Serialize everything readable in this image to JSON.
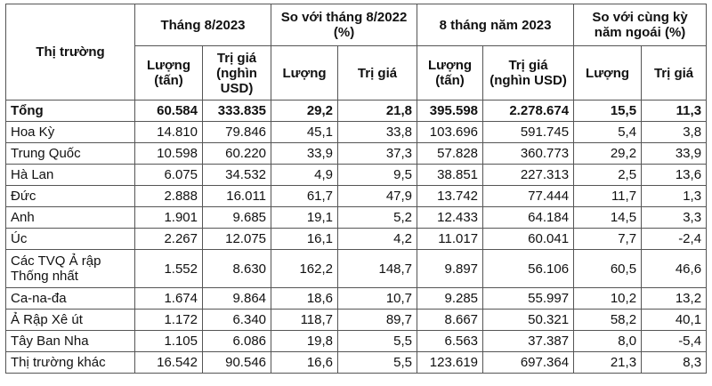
{
  "header": {
    "market": "Thị trường",
    "groups": [
      "Tháng 8/2023",
      "So với tháng 8/2022 (%)",
      "8 tháng năm 2023",
      "So với cùng kỳ năm ngoái (%)"
    ],
    "subs": [
      "Lượng (tấn)",
      "Trị giá (nghìn USD)",
      "Lượng",
      "Trị giá",
      "Lượng (tấn)",
      "Trị giá (nghìn USD)",
      "Lượng",
      "Trị giá"
    ]
  },
  "rows": [
    {
      "name": "Tổng",
      "v": [
        "60.584",
        "333.835",
        "29,2",
        "21,8",
        "395.598",
        "2.278.674",
        "15,5",
        "11,3"
      ]
    },
    {
      "name": "Hoa Kỳ",
      "v": [
        "14.810",
        "79.846",
        "45,1",
        "33,8",
        "103.696",
        "591.745",
        "5,4",
        "3,8"
      ]
    },
    {
      "name": "Trung Quốc",
      "v": [
        "10.598",
        "60.220",
        "33,9",
        "37,3",
        "57.828",
        "360.773",
        "29,2",
        "33,9"
      ]
    },
    {
      "name": "Hà Lan",
      "v": [
        "6.075",
        "34.532",
        "4,9",
        "9,5",
        "38.851",
        "227.313",
        "2,5",
        "13,6"
      ]
    },
    {
      "name": "Đức",
      "v": [
        "2.888",
        "16.011",
        "61,7",
        "47,9",
        "13.742",
        "77.444",
        "11,7",
        "1,3"
      ]
    },
    {
      "name": "Anh",
      "v": [
        "1.901",
        "9.685",
        "19,1",
        "5,2",
        "12.433",
        "64.184",
        "14,5",
        "3,3"
      ]
    },
    {
      "name": "Úc",
      "v": [
        "2.267",
        "12.075",
        "16,1",
        "4,2",
        "11.017",
        "60.041",
        "7,7",
        "-2,4"
      ]
    },
    {
      "name": "Các TVQ Ả rập Thống nhất",
      "v": [
        "1.552",
        "8.630",
        "162,2",
        "148,7",
        "9.897",
        "56.106",
        "60,5",
        "46,6"
      ]
    },
    {
      "name": "Ca-na-đa",
      "v": [
        "1.674",
        "9.864",
        "18,6",
        "10,7",
        "9.285",
        "55.997",
        "10,2",
        "13,2"
      ]
    },
    {
      "name": "Ả Rập Xê út",
      "v": [
        "1.172",
        "6.340",
        "118,7",
        "89,7",
        "8.667",
        "50.321",
        "58,2",
        "40,1"
      ]
    },
    {
      "name": "Tây Ban Nha",
      "v": [
        "1.105",
        "6.086",
        "19,8",
        "5,5",
        "6.563",
        "37.387",
        "8,0",
        "-5,4"
      ]
    },
    {
      "name": "Thị trường khác",
      "v": [
        "16.542",
        "90.546",
        "16,6",
        "5,5",
        "123.619",
        "697.364",
        "21,3",
        "8,3"
      ]
    }
  ]
}
